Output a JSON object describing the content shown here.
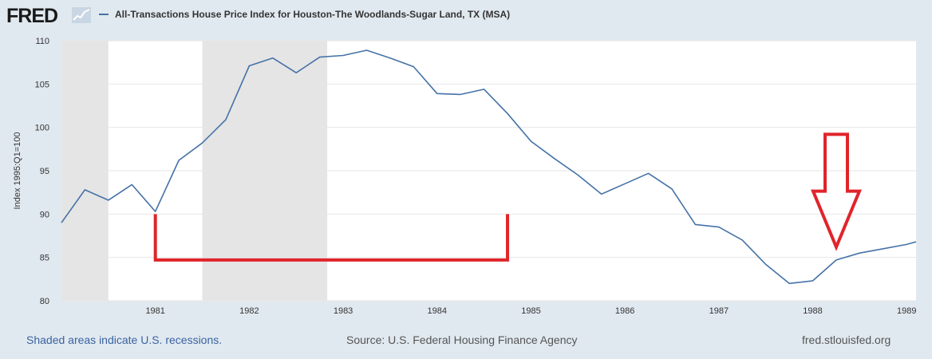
{
  "header": {
    "logo_text": "FRED",
    "legend_label": "All-Transactions House Price Index for Houston-The Woodlands-Sugar Land, TX (MSA)"
  },
  "footer": {
    "recession_note": "Shaded areas indicate U.S. recessions.",
    "source": "Source: U.S. Federal Housing Finance Agency",
    "site": "fred.stlouisfed.org"
  },
  "colors": {
    "line": "#4572a7",
    "recession": "#e5e5e5",
    "annotation": "#e0242b",
    "background": "#e1e9f0"
  },
  "chart_data": {
    "type": "line",
    "ylabel": "Index 1995:Q1=100",
    "xlim": [
      1980.0,
      1989.1
    ],
    "ylim": [
      80,
      110
    ],
    "yticks": [
      80,
      85,
      90,
      95,
      100,
      105,
      110
    ],
    "xticks": [
      1981,
      1982,
      1983,
      1984,
      1985,
      1986,
      1987,
      1988,
      1989
    ],
    "recessions": [
      [
        1980.0,
        1980.5
      ],
      [
        1981.5,
        1982.83
      ]
    ],
    "series": [
      {
        "name": "All-Transactions House Price Index for Houston-The Woodlands-Sugar Land, TX (MSA)",
        "x": [
          1980.0,
          1980.25,
          1980.5,
          1980.75,
          1981.0,
          1981.25,
          1981.5,
          1981.75,
          1982.0,
          1982.25,
          1982.5,
          1982.75,
          1983.0,
          1983.25,
          1983.5,
          1983.75,
          1984.0,
          1984.25,
          1984.5,
          1984.75,
          1985.0,
          1985.25,
          1985.5,
          1985.75,
          1986.0,
          1986.25,
          1986.5,
          1986.75,
          1987.0,
          1987.25,
          1987.5,
          1987.75,
          1988.0,
          1988.25,
          1988.5,
          1988.75,
          1989.0,
          1989.1
        ],
        "values": [
          89.0,
          92.8,
          91.6,
          93.4,
          90.3,
          96.2,
          98.2,
          100.9,
          107.1,
          108.0,
          106.3,
          108.1,
          108.3,
          108.9,
          108.0,
          107.0,
          103.9,
          103.8,
          104.4,
          101.6,
          98.4,
          96.4,
          94.5,
          92.3,
          93.5,
          94.7,
          92.9,
          88.8,
          88.5,
          87.0,
          84.2,
          82.0,
          82.3,
          84.7,
          85.5,
          86.0,
          86.5,
          86.8
        ]
      }
    ],
    "annotations": [
      {
        "type": "bracket",
        "from_x": 1981.0,
        "to_x": 1984.75,
        "top_y": 90,
        "bottom_y": 84.7
      },
      {
        "type": "down-arrow",
        "x": 1988.25,
        "tip_y": 86.2,
        "top_y": 99.2
      }
    ]
  }
}
